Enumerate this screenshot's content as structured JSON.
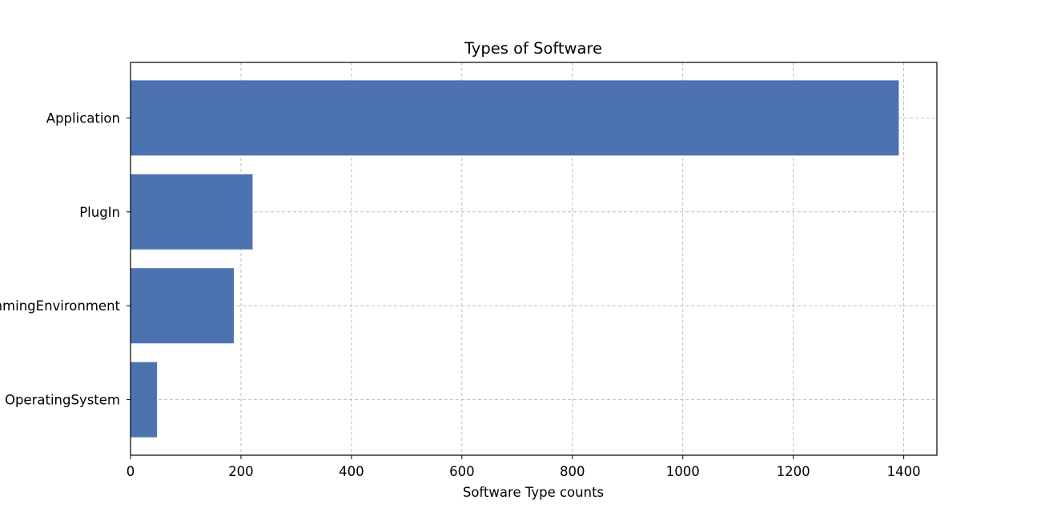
{
  "chart_data": {
    "type": "bar",
    "orientation": "horizontal",
    "title": "Types of Software",
    "xlabel": "Software Type counts",
    "ylabel": "",
    "categories": [
      "Application",
      "PlugIn",
      "ProgrammingEnvironment",
      "OperatingSystem"
    ],
    "values": [
      1391,
      221,
      187,
      48
    ],
    "xlim": [
      0,
      1460
    ],
    "xticks": [
      0,
      200,
      400,
      600,
      800,
      1000,
      1200,
      1400
    ],
    "grid": true,
    "bar_color": "#4c72b0"
  }
}
